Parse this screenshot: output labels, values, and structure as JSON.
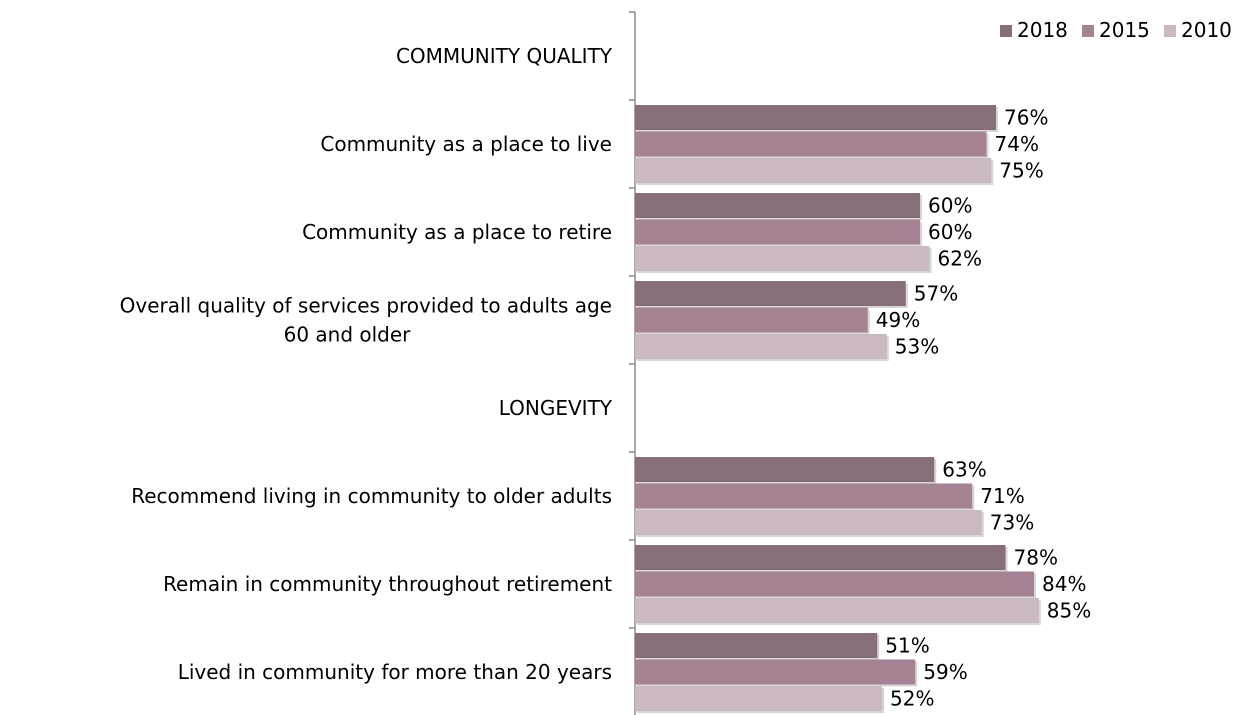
{
  "chart_data": {
    "type": "bar",
    "orientation": "horizontal",
    "categories": [
      "COMMUNITY QUALITY",
      "Community as a place to live",
      "Community as a place to retire",
      "Overall quality of services provided to adults age 60 and older",
      "LONGEVITY",
      "Recommend living in community to older adults",
      "Remain in community throughout retirement",
      "Lived in community for more than 20 years"
    ],
    "series": [
      {
        "name": "2018",
        "color": "#876e7b",
        "values": [
          null,
          76,
          60,
          57,
          null,
          63,
          78,
          51
        ],
        "labels": [
          "",
          "76%",
          "60%",
          "57%",
          "",
          "63%",
          "78%",
          "51%"
        ]
      },
      {
        "name": "2015",
        "color": "#a68394",
        "values": [
          null,
          74,
          60,
          49,
          null,
          71,
          84,
          59
        ],
        "labels": [
          "",
          "74%",
          "60%",
          "49%",
          "",
          "71%",
          "84%",
          "59%"
        ]
      },
      {
        "name": "2010",
        "color": "#cab9c3",
        "values": [
          null,
          75,
          62,
          53,
          null,
          73,
          85,
          52
        ],
        "labels": [
          "",
          "75%",
          "62%",
          "53%",
          "",
          "73%",
          "85%",
          "52%"
        ]
      }
    ],
    "value_unit": "%",
    "xlim": [
      0,
      100
    ],
    "title": "",
    "xlabel": "",
    "ylabel": "",
    "grid": false,
    "legend": {
      "position": "top-right",
      "entries": [
        "2018",
        "2015",
        "2010"
      ]
    }
  }
}
